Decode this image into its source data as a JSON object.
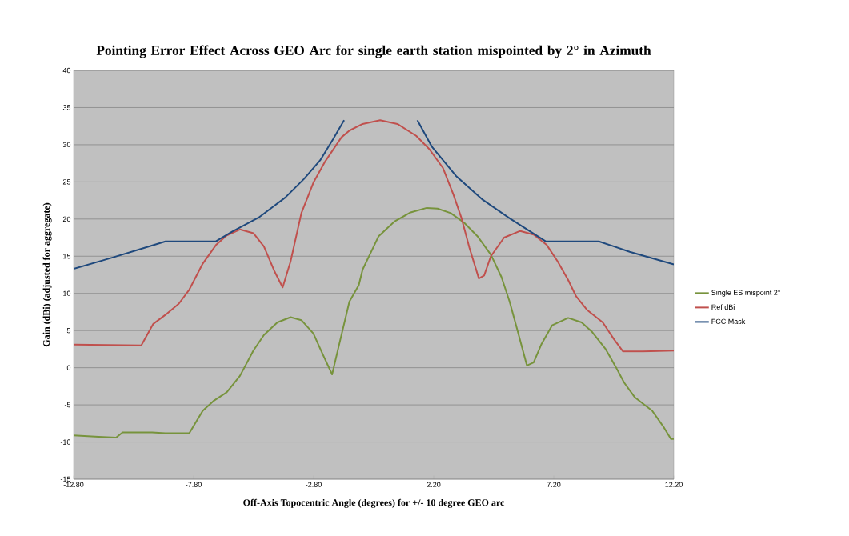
{
  "chart_data": {
    "type": "line",
    "title": "Pointing Error Effect Across GEO Arc for single earth station mispointed by 2° in Azimuth",
    "xlabel": "Off-Axis Topocentric Angle (degrees) for +/- 10 degree GEO arc",
    "ylabel": "Gain (dBi) (adjusted for aggregate)",
    "xlim": [
      -12.8,
      12.2
    ],
    "ylim": [
      -15,
      40
    ],
    "xticks": [
      {
        "value": -12.8,
        "label": "-12.80"
      },
      {
        "value": -7.8,
        "label": "-7.80"
      },
      {
        "value": -2.8,
        "label": "-2.80"
      },
      {
        "value": 2.2,
        "label": "2.20"
      },
      {
        "value": 7.2,
        "label": "7.20"
      },
      {
        "value": 12.2,
        "label": "12.20"
      }
    ],
    "yticks": [
      -15,
      -10,
      -5,
      0,
      5,
      10,
      15,
      20,
      25,
      30,
      35,
      40
    ],
    "grid": "y",
    "legend": "right",
    "series": [
      {
        "name": "Single ES mispoint 2°",
        "color": "#77933c",
        "x": [
          -12.8,
          -11.76,
          -11.03,
          -10.76,
          -9.53,
          -8.98,
          -7.98,
          -7.42,
          -6.98,
          -6.42,
          -5.87,
          -5.31,
          -4.87,
          -4.31,
          -3.76,
          -3.31,
          -2.81,
          -2.42,
          -2.03,
          -1.76,
          -1.31,
          -0.92,
          -0.76,
          -0.09,
          0.58,
          1.24,
          1.91,
          2.36,
          2.91,
          3.47,
          4.02,
          4.58,
          5.02,
          5.36,
          5.69,
          6.08,
          6.36,
          6.69,
          7.13,
          7.8,
          8.36,
          8.8,
          9.36,
          9.8,
          10.13,
          10.58,
          11.3,
          11.8,
          12.08,
          12.2
        ],
        "values": [
          -9.1,
          -9.3,
          -9.4,
          -8.7,
          -8.7,
          -8.8,
          -8.8,
          -5.8,
          -4.5,
          -3.3,
          -1.1,
          2.3,
          4.4,
          6.1,
          6.8,
          6.4,
          4.6,
          1.8,
          -0.9,
          2.8,
          8.9,
          11.1,
          13.2,
          17.7,
          19.7,
          20.9,
          21.5,
          21.4,
          20.8,
          19.5,
          17.7,
          15.2,
          12.2,
          8.9,
          5.0,
          0.3,
          0.7,
          3.2,
          5.7,
          6.7,
          6.1,
          4.8,
          2.5,
          0.0,
          -2.0,
          -4.0,
          -5.8,
          -8.1,
          -9.6,
          -9.6
        ]
      },
      {
        "name": "Ref dBi",
        "color": "#c0504d",
        "x": [
          -12.8,
          -9.98,
          -9.48,
          -8.98,
          -8.42,
          -7.98,
          -7.42,
          -6.87,
          -6.42,
          -5.87,
          -5.31,
          -4.87,
          -4.42,
          -4.09,
          -3.76,
          -3.31,
          -2.81,
          -2.31,
          -1.64,
          -1.31,
          -0.76,
          -0.03,
          0.69,
          1.47,
          2.02,
          2.58,
          3.02,
          3.36,
          3.69,
          4.08,
          4.3,
          4.58,
          5.13,
          5.8,
          6.36,
          6.91,
          7.36,
          7.8,
          8.13,
          8.58,
          9.24,
          9.69,
          10.08,
          10.91,
          12.2
        ],
        "values": [
          3.1,
          3.0,
          5.9,
          7.1,
          8.6,
          10.5,
          14.0,
          16.5,
          17.8,
          18.6,
          18.1,
          16.3,
          12.9,
          10.8,
          14.3,
          20.8,
          24.9,
          27.8,
          31.0,
          31.9,
          32.8,
          33.3,
          32.8,
          31.2,
          29.4,
          26.9,
          23.3,
          20.1,
          16.1,
          12.0,
          12.4,
          15.0,
          17.5,
          18.4,
          17.9,
          16.5,
          14.3,
          11.8,
          9.6,
          7.8,
          6.1,
          3.9,
          2.2,
          2.2,
          2.3
        ]
      },
      {
        "name": "FCC Mask",
        "color": "#1f497d",
        "x": [
          -12.8,
          -11.2,
          -9.98,
          -8.97,
          -6.87,
          -6.2,
          -5.09,
          -3.98,
          -3.2,
          -2.53,
          -1.98,
          -1.53,
          0,
          1.52,
          2.13,
          3.13,
          4.24,
          5.36,
          6.86,
          9.08,
          10.36,
          12.2
        ],
        "values": [
          13.3,
          14.8,
          16.0,
          17.0,
          17.0,
          18.3,
          20.2,
          22.9,
          25.4,
          27.9,
          30.8,
          33.3,
          null,
          33.3,
          29.7,
          25.8,
          22.6,
          20.1,
          17.0,
          17.0,
          15.6,
          13.9
        ]
      }
    ]
  }
}
